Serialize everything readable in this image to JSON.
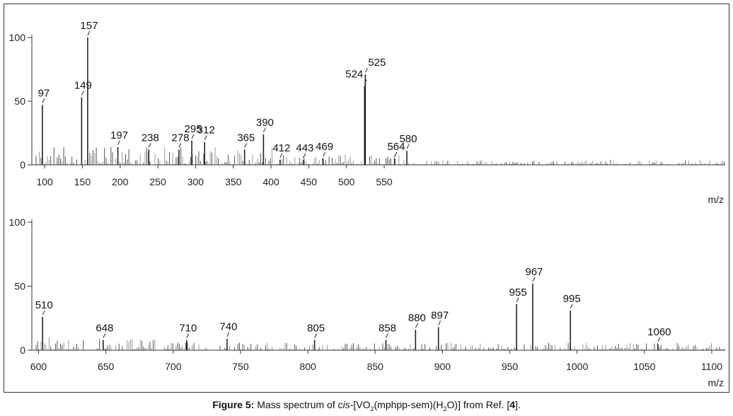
{
  "chart_data": [
    {
      "type": "bar",
      "xlabel": "m/z",
      "xlim": [
        83,
        1002
      ],
      "ylim": [
        0,
        100
      ],
      "x_ticks": [
        100,
        150,
        200,
        250,
        300,
        350,
        400,
        450,
        500,
        550
      ],
      "y_ticks": [
        0,
        50,
        100
      ],
      "peaks": [
        {
          "mz": 97,
          "intensity": 47,
          "label": "97"
        },
        {
          "mz": 149,
          "intensity": 53,
          "label": "149"
        },
        {
          "mz": 157,
          "intensity": 100,
          "label": "157"
        },
        {
          "mz": 197,
          "intensity": 14,
          "label": "197"
        },
        {
          "mz": 238,
          "intensity": 12,
          "label": "238"
        },
        {
          "mz": 278,
          "intensity": 12,
          "label": "278"
        },
        {
          "mz": 295,
          "intensity": 19,
          "label": "295"
        },
        {
          "mz": 312,
          "intensity": 18,
          "label": "312"
        },
        {
          "mz": 365,
          "intensity": 12,
          "label": "365"
        },
        {
          "mz": 390,
          "intensity": 24,
          "label": "390"
        },
        {
          "mz": 412,
          "intensity": 4,
          "label": "412"
        },
        {
          "mz": 443,
          "intensity": 4,
          "label": "443"
        },
        {
          "mz": 469,
          "intensity": 5,
          "label": "469"
        },
        {
          "mz": 524,
          "intensity": 62,
          "label": "524"
        },
        {
          "mz": 525,
          "intensity": 71,
          "label": "525"
        },
        {
          "mz": 564,
          "intensity": 5,
          "label": "564"
        },
        {
          "mz": 580,
          "intensity": 11,
          "label": "580"
        }
      ]
    },
    {
      "type": "bar",
      "xlabel": "m/z",
      "xlim": [
        595,
        1110
      ],
      "ylim": [
        0,
        100
      ],
      "x_ticks": [
        600,
        650,
        700,
        750,
        800,
        850,
        900,
        950,
        1000,
        1050,
        1100
      ],
      "y_ticks": [
        0,
        50,
        100
      ],
      "peaks": [
        {
          "mz": 510,
          "intensity": 26,
          "label": "510"
        },
        {
          "mz": 648,
          "intensity": 8,
          "label": "648"
        },
        {
          "mz": 710,
          "intensity": 8,
          "label": "710"
        },
        {
          "mz": 740,
          "intensity": 9,
          "label": "740"
        },
        {
          "mz": 805,
          "intensity": 8,
          "label": "805"
        },
        {
          "mz": 858,
          "intensity": 8,
          "label": "858"
        },
        {
          "mz": 880,
          "intensity": 16,
          "label": "880"
        },
        {
          "mz": 897,
          "intensity": 18,
          "label": "897"
        },
        {
          "mz": 955,
          "intensity": 36,
          "label": "955"
        },
        {
          "mz": 967,
          "intensity": 52,
          "label": "967"
        },
        {
          "mz": 995,
          "intensity": 31,
          "label": "995"
        },
        {
          "mz": 1060,
          "intensity": 5,
          "label": "1060"
        }
      ]
    }
  ],
  "caption": {
    "figure_label": "Figure 5:",
    "text_prefix": "Mass spectrum of ",
    "cis": "cis",
    "text_formula_a": "-[VO",
    "sub_2": "2",
    "text_formula_b": "(mphpp-sem)(H",
    "sub_h2": "2",
    "text_formula_c": "O)] from Ref. [",
    "ref": "4",
    "text_end": "]."
  }
}
